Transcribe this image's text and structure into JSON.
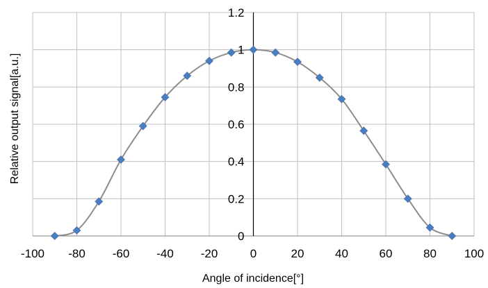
{
  "chart_data": {
    "type": "scatter",
    "xlabel": "Angle of incidence[°]",
    "ylabel": "Relative output signal[a.u.]",
    "xlim": [
      -100,
      100
    ],
    "ylim": [
      0,
      1.2
    ],
    "xticks": [
      "-100",
      "-80",
      "-60",
      "-40",
      "-20",
      "0",
      "20",
      "40",
      "60",
      "80",
      "100"
    ],
    "yticks": [
      "0",
      "0.2",
      "0.4",
      "0.6",
      "0.8",
      "1",
      "1.2"
    ],
    "grid": true,
    "legend": "none",
    "marker_color": "#4a7ebf",
    "line_color": "#8c8c8c",
    "series": [
      {
        "x": [
          -90,
          -80,
          -70,
          -60,
          -50,
          -40,
          -30,
          -20,
          -10,
          0,
          10,
          20,
          30,
          40,
          50,
          60,
          70,
          80,
          90
        ],
        "y": [
          0.0,
          0.03,
          0.185,
          0.41,
          0.59,
          0.745,
          0.86,
          0.94,
          0.985,
          1.0,
          0.985,
          0.935,
          0.85,
          0.735,
          0.565,
          0.385,
          0.2,
          0.045,
          0.0
        ]
      }
    ]
  }
}
